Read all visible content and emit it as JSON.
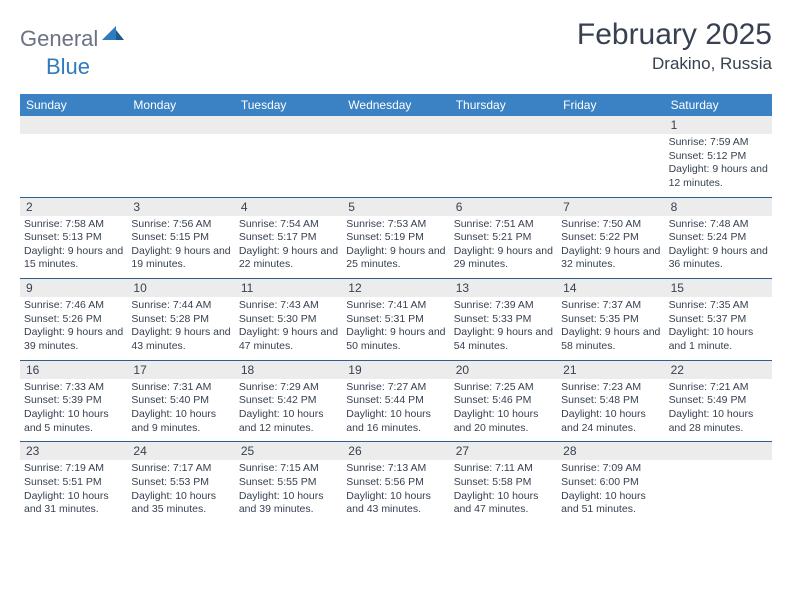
{
  "logo": {
    "general": "General",
    "blue": "Blue"
  },
  "title": "February 2025",
  "location": "Drakino, Russia",
  "day_names": [
    "Sunday",
    "Monday",
    "Tuesday",
    "Wednesday",
    "Thursday",
    "Friday",
    "Saturday"
  ],
  "colors": {
    "header_bg": "#3b82c4",
    "header_text": "#ffffff",
    "daynum_bg": "#ececec",
    "text": "#374151",
    "rule": "#2f5f8f",
    "logo_gray": "#6b7280",
    "logo_blue": "#2f7bbf"
  },
  "weeks": [
    [
      {
        "n": "",
        "lines": []
      },
      {
        "n": "",
        "lines": []
      },
      {
        "n": "",
        "lines": []
      },
      {
        "n": "",
        "lines": []
      },
      {
        "n": "",
        "lines": []
      },
      {
        "n": "",
        "lines": []
      },
      {
        "n": "1",
        "lines": [
          "Sunrise: 7:59 AM",
          "Sunset: 5:12 PM",
          "Daylight: 9 hours and 12 minutes."
        ]
      }
    ],
    [
      {
        "n": "2",
        "lines": [
          "Sunrise: 7:58 AM",
          "Sunset: 5:13 PM",
          "Daylight: 9 hours and 15 minutes."
        ]
      },
      {
        "n": "3",
        "lines": [
          "Sunrise: 7:56 AM",
          "Sunset: 5:15 PM",
          "Daylight: 9 hours and 19 minutes."
        ]
      },
      {
        "n": "4",
        "lines": [
          "Sunrise: 7:54 AM",
          "Sunset: 5:17 PM",
          "Daylight: 9 hours and 22 minutes."
        ]
      },
      {
        "n": "5",
        "lines": [
          "Sunrise: 7:53 AM",
          "Sunset: 5:19 PM",
          "Daylight: 9 hours and 25 minutes."
        ]
      },
      {
        "n": "6",
        "lines": [
          "Sunrise: 7:51 AM",
          "Sunset: 5:21 PM",
          "Daylight: 9 hours and 29 minutes."
        ]
      },
      {
        "n": "7",
        "lines": [
          "Sunrise: 7:50 AM",
          "Sunset: 5:22 PM",
          "Daylight: 9 hours and 32 minutes."
        ]
      },
      {
        "n": "8",
        "lines": [
          "Sunrise: 7:48 AM",
          "Sunset: 5:24 PM",
          "Daylight: 9 hours and 36 minutes."
        ]
      }
    ],
    [
      {
        "n": "9",
        "lines": [
          "Sunrise: 7:46 AM",
          "Sunset: 5:26 PM",
          "Daylight: 9 hours and 39 minutes."
        ]
      },
      {
        "n": "10",
        "lines": [
          "Sunrise: 7:44 AM",
          "Sunset: 5:28 PM",
          "Daylight: 9 hours and 43 minutes."
        ]
      },
      {
        "n": "11",
        "lines": [
          "Sunrise: 7:43 AM",
          "Sunset: 5:30 PM",
          "Daylight: 9 hours and 47 minutes."
        ]
      },
      {
        "n": "12",
        "lines": [
          "Sunrise: 7:41 AM",
          "Sunset: 5:31 PM",
          "Daylight: 9 hours and 50 minutes."
        ]
      },
      {
        "n": "13",
        "lines": [
          "Sunrise: 7:39 AM",
          "Sunset: 5:33 PM",
          "Daylight: 9 hours and 54 minutes."
        ]
      },
      {
        "n": "14",
        "lines": [
          "Sunrise: 7:37 AM",
          "Sunset: 5:35 PM",
          "Daylight: 9 hours and 58 minutes."
        ]
      },
      {
        "n": "15",
        "lines": [
          "Sunrise: 7:35 AM",
          "Sunset: 5:37 PM",
          "Daylight: 10 hours and 1 minute."
        ]
      }
    ],
    [
      {
        "n": "16",
        "lines": [
          "Sunrise: 7:33 AM",
          "Sunset: 5:39 PM",
          "Daylight: 10 hours and 5 minutes."
        ]
      },
      {
        "n": "17",
        "lines": [
          "Sunrise: 7:31 AM",
          "Sunset: 5:40 PM",
          "Daylight: 10 hours and 9 minutes."
        ]
      },
      {
        "n": "18",
        "lines": [
          "Sunrise: 7:29 AM",
          "Sunset: 5:42 PM",
          "Daylight: 10 hours and 12 minutes."
        ]
      },
      {
        "n": "19",
        "lines": [
          "Sunrise: 7:27 AM",
          "Sunset: 5:44 PM",
          "Daylight: 10 hours and 16 minutes."
        ]
      },
      {
        "n": "20",
        "lines": [
          "Sunrise: 7:25 AM",
          "Sunset: 5:46 PM",
          "Daylight: 10 hours and 20 minutes."
        ]
      },
      {
        "n": "21",
        "lines": [
          "Sunrise: 7:23 AM",
          "Sunset: 5:48 PM",
          "Daylight: 10 hours and 24 minutes."
        ]
      },
      {
        "n": "22",
        "lines": [
          "Sunrise: 7:21 AM",
          "Sunset: 5:49 PM",
          "Daylight: 10 hours and 28 minutes."
        ]
      }
    ],
    [
      {
        "n": "23",
        "lines": [
          "Sunrise: 7:19 AM",
          "Sunset: 5:51 PM",
          "Daylight: 10 hours and 31 minutes."
        ]
      },
      {
        "n": "24",
        "lines": [
          "Sunrise: 7:17 AM",
          "Sunset: 5:53 PM",
          "Daylight: 10 hours and 35 minutes."
        ]
      },
      {
        "n": "25",
        "lines": [
          "Sunrise: 7:15 AM",
          "Sunset: 5:55 PM",
          "Daylight: 10 hours and 39 minutes."
        ]
      },
      {
        "n": "26",
        "lines": [
          "Sunrise: 7:13 AM",
          "Sunset: 5:56 PM",
          "Daylight: 10 hours and 43 minutes."
        ]
      },
      {
        "n": "27",
        "lines": [
          "Sunrise: 7:11 AM",
          "Sunset: 5:58 PM",
          "Daylight: 10 hours and 47 minutes."
        ]
      },
      {
        "n": "28",
        "lines": [
          "Sunrise: 7:09 AM",
          "Sunset: 6:00 PM",
          "Daylight: 10 hours and 51 minutes."
        ]
      },
      {
        "n": "",
        "lines": []
      }
    ]
  ]
}
